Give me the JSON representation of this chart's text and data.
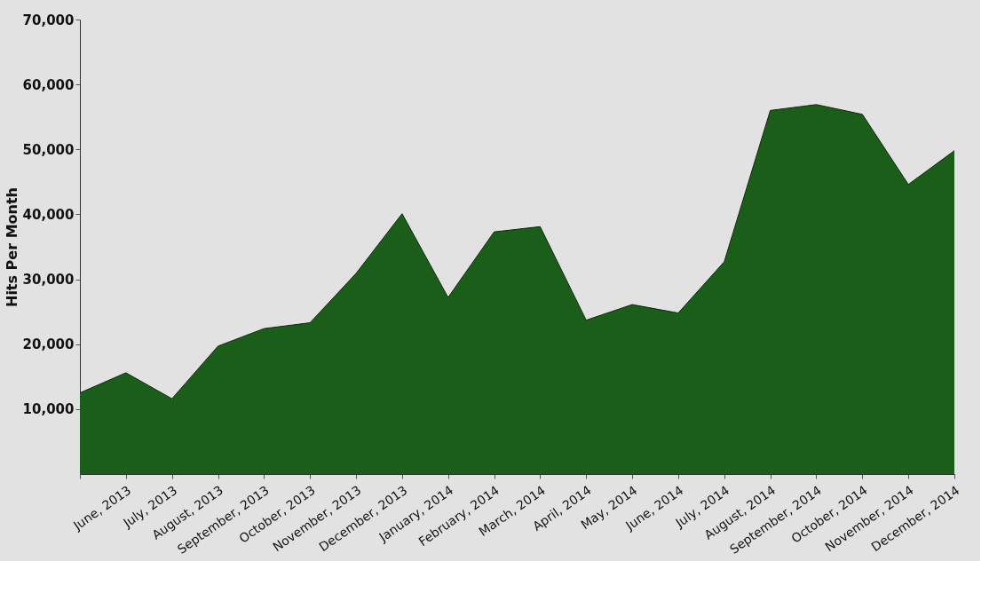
{
  "chart_data": {
    "type": "area",
    "ylabel": "Hits Per Month",
    "categories": [
      null,
      "June, 2013",
      "July, 2013",
      "August, 2013",
      "September, 2013",
      "October, 2013",
      "November, 2013",
      "December, 2013",
      "January, 2014",
      "February, 2014",
      "March, 2014",
      "April, 2014",
      "May, 2014",
      "June, 2014",
      "July, 2014",
      "August, 2014",
      "September, 2014",
      "October, 2014",
      "November, 2014",
      "December, 2014"
    ],
    "series": [
      {
        "color": "#1a5e1a",
        "values": [
          12500,
          15600,
          11600,
          19700,
          22400,
          23300,
          30900,
          40100,
          27200,
          37300,
          38100,
          23700,
          26100,
          24800,
          32700,
          56000,
          56900,
          55400,
          44600,
          49800
        ]
      }
    ],
    "ylim": [
      0,
      70000
    ],
    "yticks": [
      {
        "value": 10000,
        "label": "10,000"
      },
      {
        "value": 20000,
        "label": "20,000"
      },
      {
        "value": 30000,
        "label": "30,000"
      },
      {
        "value": 40000,
        "label": "40,000"
      },
      {
        "value": 50000,
        "label": "50,000"
      },
      {
        "value": 60000,
        "label": "60,000"
      },
      {
        "value": 70000,
        "label": "70,000"
      }
    ]
  }
}
